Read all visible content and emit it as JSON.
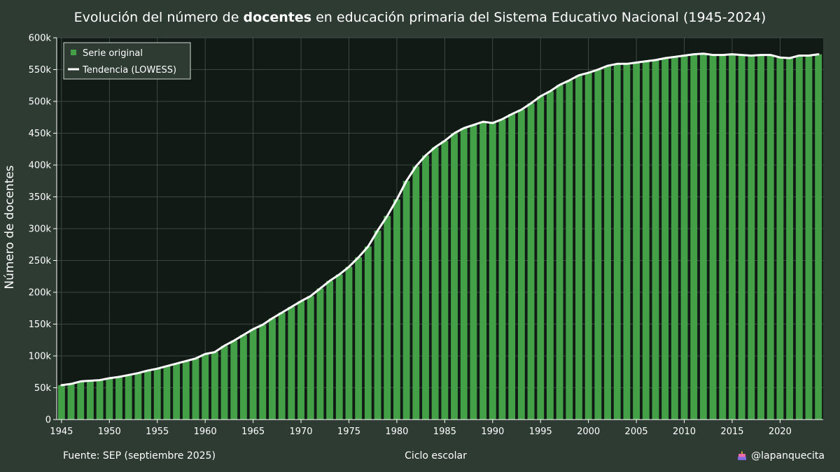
{
  "title": {
    "prefix": "Evolución del número de ",
    "bold": "docentes",
    "suffix": " en educación primaria del Sistema Educativo Nacional (1945-2024)"
  },
  "footer": {
    "source": "Fuente: SEP (septiembre 2025)",
    "handle": "@lapanquecita"
  },
  "colors": {
    "page_background": "#2e3b33",
    "plot_background": "#121a16",
    "bar": "#43a047",
    "trend_line": "#ffffff",
    "grid": "#4a5550"
  },
  "chart_data": {
    "type": "bar",
    "xlabel": "Ciclo escolar",
    "ylabel": "Número de docentes",
    "xlim": [
      1944.5,
      2024.5
    ],
    "ylim": [
      0,
      600000
    ],
    "x_ticks": [
      1945,
      1950,
      1955,
      1960,
      1965,
      1970,
      1975,
      1980,
      1985,
      1990,
      1995,
      2000,
      2005,
      2010,
      2015,
      2020
    ],
    "y_ticks": [
      0,
      50000,
      100000,
      150000,
      200000,
      250000,
      300000,
      350000,
      400000,
      450000,
      500000,
      550000,
      600000
    ],
    "y_tick_labels": [
      "0",
      "50k",
      "100k",
      "150k",
      "200k",
      "250k",
      "300k",
      "350k",
      "400k",
      "450k",
      "500k",
      "550k",
      "600k"
    ],
    "grid": true,
    "legend_position": "top-left",
    "x": [
      1945,
      1946,
      1947,
      1948,
      1949,
      1950,
      1951,
      1952,
      1953,
      1954,
      1955,
      1956,
      1957,
      1958,
      1959,
      1960,
      1961,
      1962,
      1963,
      1964,
      1965,
      1966,
      1967,
      1968,
      1969,
      1970,
      1971,
      1972,
      1973,
      1974,
      1975,
      1976,
      1977,
      1978,
      1979,
      1980,
      1981,
      1982,
      1983,
      1984,
      1985,
      1986,
      1987,
      1988,
      1989,
      1990,
      1991,
      1992,
      1993,
      1994,
      1995,
      1996,
      1997,
      1998,
      1999,
      2000,
      2001,
      2002,
      2003,
      2004,
      2005,
      2006,
      2007,
      2008,
      2009,
      2010,
      2011,
      2012,
      2013,
      2014,
      2015,
      2016,
      2017,
      2018,
      2019,
      2020,
      2021,
      2022,
      2023,
      2024
    ],
    "series": [
      {
        "name": "Serie original",
        "type": "bar",
        "values": [
          54000,
          56000,
          60000,
          61000,
          62000,
          65000,
          67000,
          70000,
          73000,
          77000,
          80000,
          84000,
          88000,
          92000,
          96000,
          103000,
          106000,
          116000,
          124000,
          133000,
          142000,
          149000,
          159000,
          168000,
          177000,
          186000,
          194000,
          206000,
          218000,
          228000,
          240000,
          255000,
          272000,
          297000,
          320000,
          346000,
          375000,
          398000,
          415000,
          428000,
          438000,
          450000,
          458000,
          463000,
          468000,
          466000,
          472000,
          480000,
          487000,
          497000,
          508000,
          516000,
          526000,
          533000,
          541000,
          545000,
          550000,
          556000,
          559000,
          559000,
          561000,
          563000,
          565000,
          568000,
          570000,
          572000,
          574000,
          575000,
          573000,
          573000,
          574000,
          573000,
          572000,
          573000,
          573000,
          569000,
          568000,
          572000,
          572000,
          574000
        ]
      },
      {
        "name": "Tendencia (LOWESS)",
        "type": "line",
        "values": [
          54000,
          56000,
          60000,
          61000,
          62000,
          65000,
          67000,
          70000,
          73000,
          77000,
          80000,
          84000,
          88000,
          92000,
          96000,
          103000,
          106000,
          116000,
          124000,
          133000,
          142000,
          149000,
          159000,
          168000,
          177000,
          186000,
          194000,
          206000,
          218000,
          228000,
          240000,
          255000,
          272000,
          297000,
          320000,
          346000,
          375000,
          398000,
          415000,
          428000,
          438000,
          450000,
          458000,
          463000,
          468000,
          466000,
          472000,
          480000,
          487000,
          497000,
          508000,
          516000,
          526000,
          533000,
          541000,
          545000,
          550000,
          556000,
          559000,
          559000,
          561000,
          563000,
          565000,
          568000,
          570000,
          572000,
          574000,
          575000,
          573000,
          573000,
          574000,
          573000,
          572000,
          573000,
          573000,
          569000,
          568000,
          572000,
          572000,
          574000
        ]
      }
    ]
  }
}
